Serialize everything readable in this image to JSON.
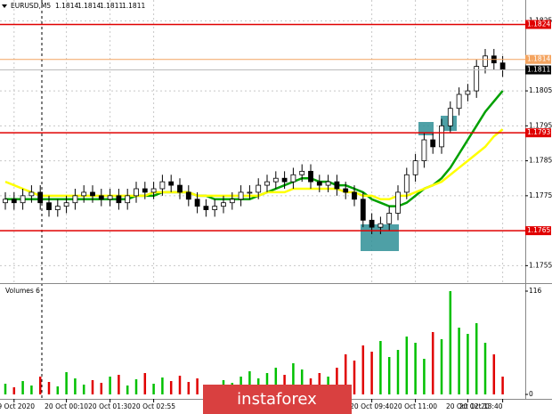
{
  "chart_data": {
    "type": "candlestick",
    "title": "EURUSD,M5",
    "ohlc": [
      1.1814,
      1.1814,
      1.1811,
      1.1811
    ],
    "categories": [
      null,
      "19 Oct 2020",
      null,
      null,
      null,
      null,
      null,
      "20 Oct 00:10",
      null,
      null,
      null,
      null,
      "20 Oct 01:30",
      null,
      null,
      null,
      null,
      "20 Oct 02:55",
      null,
      null,
      null,
      null,
      null,
      null,
      null,
      null,
      null,
      null,
      null,
      null,
      null,
      null,
      null,
      null,
      null,
      null,
      null,
      null,
      null,
      null,
      null,
      null,
      "20 Oct 09:40",
      null,
      null,
      null,
      null,
      "20 Oct 11:00",
      null,
      null,
      null,
      null,
      null,
      "20 Oct 12:20",
      null,
      null,
      null,
      "20 Oct 13:40"
    ],
    "open": [
      1.1773,
      1.1774,
      1.1773,
      1.1775,
      1.1776,
      1.1773,
      1.1771,
      1.1772,
      1.1773,
      1.1775,
      1.1776,
      1.1775,
      1.1774,
      1.1775,
      1.1773,
      1.1775,
      1.1777,
      1.1776,
      1.1777,
      1.1779,
      1.1778,
      1.1776,
      1.1774,
      1.1772,
      1.1771,
      1.1772,
      1.1773,
      1.1774,
      1.1776,
      1.1776,
      1.1778,
      1.1779,
      1.178,
      1.1779,
      1.1781,
      1.1782,
      1.1779,
      1.1778,
      1.1779,
      1.1777,
      1.1776,
      1.1774,
      1.1768,
      1.1766,
      1.1767,
      1.177,
      1.1776,
      1.1781,
      1.1785,
      1.1791,
      1.1789,
      1.1795,
      1.18,
      1.1804,
      1.1805,
      1.1812,
      1.1815,
      1.1813
    ],
    "high": [
      1.1776,
      1.1776,
      1.1777,
      1.1778,
      1.1778,
      1.1775,
      1.1774,
      1.1775,
      1.1777,
      1.1778,
      1.1778,
      1.1777,
      1.1777,
      1.1777,
      1.1777,
      1.1779,
      1.1779,
      1.1779,
      1.1781,
      1.1781,
      1.178,
      1.1778,
      1.1776,
      1.1774,
      1.1774,
      1.1775,
      1.1776,
      1.1778,
      1.1778,
      1.178,
      1.1781,
      1.1782,
      1.1782,
      1.1783,
      1.1784,
      1.1784,
      1.1781,
      1.1781,
      1.1781,
      1.1779,
      1.1778,
      1.1776,
      1.177,
      1.1769,
      1.1772,
      1.1778,
      1.1783,
      1.1787,
      1.1793,
      1.1793,
      1.1797,
      1.1802,
      1.1806,
      1.1807,
      1.1814,
      1.1817,
      1.1817,
      1.1815
    ],
    "low": [
      1.1771,
      1.1771,
      1.1771,
      1.1773,
      1.1771,
      1.1769,
      1.1769,
      1.177,
      1.1771,
      1.1773,
      1.1773,
      1.1772,
      1.1772,
      1.1771,
      1.1771,
      1.1773,
      1.1774,
      1.1774,
      1.1775,
      1.1776,
      1.1774,
      1.1772,
      1.177,
      1.1769,
      1.1769,
      1.177,
      1.1771,
      1.1772,
      1.1774,
      1.1774,
      1.1776,
      1.1777,
      1.1777,
      1.1777,
      1.1779,
      1.1777,
      1.1776,
      1.1776,
      1.1775,
      1.1774,
      1.1772,
      1.1766,
      1.1764,
      1.1764,
      1.1765,
      1.1768,
      1.1774,
      1.1779,
      1.1783,
      1.1787,
      1.1787,
      1.1793,
      1.1798,
      1.1802,
      1.1803,
      1.181,
      1.1811,
      1.1809
    ],
    "close": [
      1.1774,
      1.1773,
      1.1775,
      1.1776,
      1.1773,
      1.1771,
      1.1772,
      1.1773,
      1.1775,
      1.1776,
      1.1775,
      1.1774,
      1.1775,
      1.1773,
      1.1775,
      1.1777,
      1.1776,
      1.1777,
      1.1779,
      1.1778,
      1.1776,
      1.1774,
      1.1772,
      1.1771,
      1.1772,
      1.1773,
      1.1774,
      1.1776,
      1.1776,
      1.1778,
      1.1779,
      1.178,
      1.1779,
      1.1781,
      1.1782,
      1.1779,
      1.1778,
      1.1779,
      1.1777,
      1.1776,
      1.1774,
      1.1768,
      1.1766,
      1.1767,
      1.177,
      1.1776,
      1.1781,
      1.1785,
      1.1791,
      1.1789,
      1.1795,
      1.18,
      1.1804,
      1.1805,
      1.1812,
      1.1815,
      1.1813,
      1.1811
    ],
    "series": [
      {
        "color": "#00a000",
        "values": [
          1.1774,
          1.1774,
          1.1774,
          1.1774,
          1.1774,
          1.1774,
          1.1774,
          1.1774,
          1.1774,
          1.1774,
          1.1774,
          1.1774,
          1.1774,
          1.1774,
          1.1774,
          1.1775,
          1.1775,
          1.1775,
          1.1776,
          1.1776,
          1.1776,
          1.1776,
          1.1775,
          1.1775,
          1.1774,
          1.1774,
          1.1774,
          1.1774,
          1.1774,
          1.1775,
          1.1776,
          1.1777,
          1.1778,
          1.1779,
          1.178,
          1.178,
          1.1779,
          1.1779,
          1.1778,
          1.1778,
          1.1777,
          1.1776,
          1.1774,
          1.1773,
          1.1772,
          1.1772,
          1.1773,
          1.1775,
          1.1777,
          1.1778,
          1.178,
          1.1783,
          1.1787,
          1.1791,
          1.1795,
          1.1799,
          1.1802,
          1.1805
        ]
      },
      {
        "color": "#ffff00",
        "values": [
          1.1779,
          1.1778,
          1.1777,
          1.1776,
          1.1775,
          1.1775,
          1.1775,
          1.1775,
          1.1775,
          1.1775,
          1.1775,
          1.1775,
          1.1775,
          1.1775,
          1.1775,
          1.1775,
          1.1775,
          1.1776,
          1.1776,
          1.1776,
          1.1776,
          1.1776,
          1.1775,
          1.1775,
          1.1775,
          1.1775,
          1.1775,
          1.1775,
          1.1775,
          1.1775,
          1.1776,
          1.1776,
          1.1776,
          1.1777,
          1.1777,
          1.1777,
          1.1777,
          1.1777,
          1.1777,
          1.1776,
          1.1776,
          1.1775,
          1.1775,
          1.1774,
          1.1774,
          1.1775,
          1.1775,
          1.1776,
          1.1777,
          1.1778,
          1.1779,
          1.1781,
          1.1783,
          1.1785,
          1.1787,
          1.1789,
          1.1792,
          1.1794
        ]
      }
    ],
    "ylim": [
      1.175,
      1.1831
    ],
    "yticks": [
      1.1755,
      1.1775,
      1.1785,
      1.1795,
      1.1805,
      1.1825
    ],
    "grid": true,
    "levels": [
      1.1824,
      1.1793,
      1.1765
    ],
    "level_color": "#e00000",
    "ask_line": 1.1814,
    "ask_color": "#f4a460",
    "bid": 1.1811,
    "volumes": {
      "label": "Volumes 6",
      "values": [
        12,
        8,
        15,
        10,
        20,
        14,
        9,
        25,
        18,
        11,
        16,
        13,
        20,
        22,
        10,
        17,
        24,
        12,
        19,
        15,
        21,
        14,
        18,
        11,
        9,
        16,
        13,
        20,
        26,
        18,
        24,
        30,
        22,
        35,
        28,
        18,
        24,
        20,
        30,
        45,
        38,
        55,
        48,
        60,
        42,
        50,
        65,
        58,
        40,
        70,
        62,
        116,
        75,
        68,
        80,
        58,
        45,
        20
      ],
      "up_color": "#00c000",
      "down_color": "#e00000",
      "ylim": [
        0,
        116
      ],
      "yticks": [
        0,
        116
      ]
    },
    "watermark": "instaforex"
  }
}
